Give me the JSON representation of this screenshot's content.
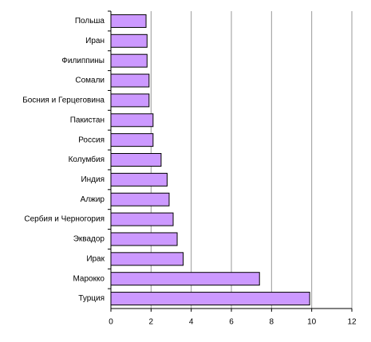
{
  "chart_data": {
    "type": "hbar",
    "categories": [
      "Польша",
      "Иран",
      "Филиппины",
      "Сомали",
      "Босния и Герцеговина",
      "Пакистан",
      "Россия",
      "Колумбия",
      "Индия",
      "Алжир",
      "Сербия и Черногория",
      "Эквадор",
      "Ирак",
      "Марокко",
      "Турция"
    ],
    "values": [
      1.75,
      1.8,
      1.8,
      1.9,
      1.9,
      2.1,
      2.1,
      2.5,
      2.8,
      2.9,
      3.1,
      3.3,
      3.6,
      7.4,
      9.9
    ],
    "color": "#cc99ff",
    "xlim": [
      0,
      12
    ],
    "xticks": [
      0,
      2,
      4,
      6,
      8,
      10,
      12
    ],
    "grid": true
  }
}
